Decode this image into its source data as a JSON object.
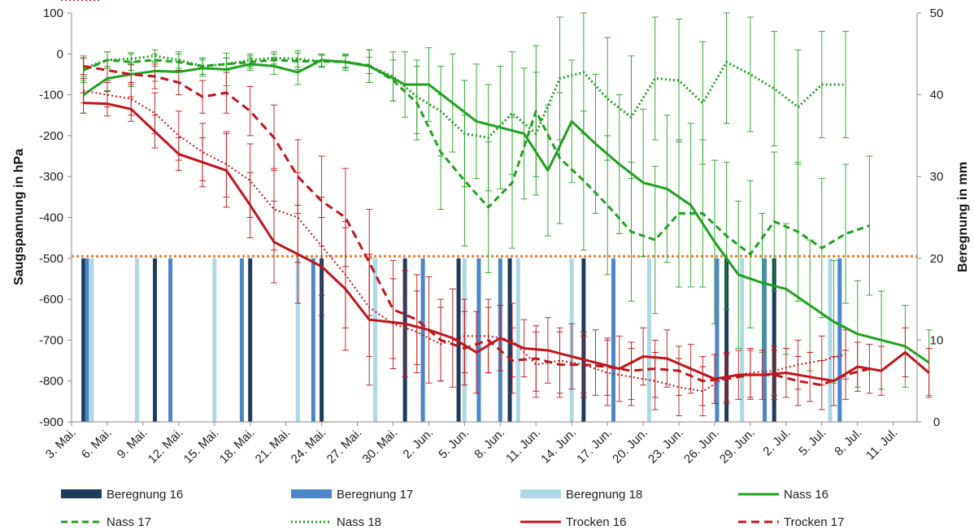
{
  "chart_data": {
    "type": "line",
    "x_tick_labels": [
      "3. Mai.",
      "6. Mai.",
      "9. Mai.",
      "12. Mai.",
      "15. Mai.",
      "18. Mai.",
      "21. Mai.",
      "24. Mai.",
      "27. Mai.",
      "30. Mai.",
      "2. Jun.",
      "5. Jun.",
      "8. Jun.",
      "11. Jun.",
      "14. Jun.",
      "17. Jun.",
      "20. Jun.",
      "23. Jun.",
      "26. Jun.",
      "29. Jun.",
      "2. Jul.",
      "5. Jul.",
      "8. Jul.",
      "11. Jul."
    ],
    "x_unit": "day of year 2016-2018 (0 = 3. Mai.)",
    "xlim": [
      0,
      71
    ],
    "y_left": {
      "label": "Saugspannung in hPa",
      "lim": [
        -900,
        100
      ],
      "ticks": [
        100,
        0,
        -100,
        -200,
        -300,
        -400,
        -500,
        -600,
        -700,
        -800,
        -900
      ]
    },
    "y_right": {
      "label": "Beregnung in mm",
      "lim": [
        0,
        50
      ],
      "ticks": [
        50,
        40,
        30,
        20,
        10,
        0
      ]
    },
    "reference_line": {
      "axis": "left",
      "value": -495,
      "color": "#ed7d31"
    },
    "bars": [
      {
        "name": "Beregnung 16",
        "color": "#1f3b5c",
        "axis": "right",
        "points": [
          [
            1,
            20
          ],
          [
            7,
            20
          ],
          [
            15,
            20
          ],
          [
            21,
            20
          ],
          [
            28,
            20
          ],
          [
            32.5,
            20
          ],
          [
            36.8,
            20
          ],
          [
            43,
            20
          ],
          [
            55,
            20
          ],
          [
            59,
            20
          ]
        ]
      },
      {
        "name": "Beregnung 17",
        "color": "#4a86c8",
        "axis": "right",
        "points": [
          [
            1.3,
            20
          ],
          [
            8.3,
            20
          ],
          [
            14.3,
            20
          ],
          [
            20.3,
            20
          ],
          [
            29.5,
            20
          ],
          [
            34.2,
            20
          ],
          [
            36,
            20
          ],
          [
            45.5,
            20
          ],
          [
            54.2,
            20
          ],
          [
            58.2,
            20
          ],
          [
            64.5,
            20
          ]
        ]
      },
      {
        "name": "Beregnung 18",
        "color": "#add8e6",
        "axis": "right",
        "points": [
          [
            1.7,
            20
          ],
          [
            5.5,
            20
          ],
          [
            12,
            20
          ],
          [
            19,
            20
          ],
          [
            25.5,
            20
          ],
          [
            33,
            20
          ],
          [
            37.5,
            20
          ],
          [
            42,
            20
          ],
          [
            48.5,
            20
          ],
          [
            56.3,
            20
          ],
          [
            63.7,
            20
          ]
        ]
      }
    ],
    "series": [
      {
        "name": "Nass 16",
        "color": "#21a121",
        "dash": "solid",
        "width": 3,
        "x": [
          1,
          3,
          5,
          7,
          9,
          11,
          13,
          15,
          17,
          19,
          21,
          23,
          25,
          28,
          30,
          32,
          34,
          36,
          38,
          40,
          42,
          44,
          46,
          48,
          50,
          52,
          54,
          56,
          58,
          60,
          62,
          64,
          66,
          68,
          70,
          72
        ],
        "y": [
          -100,
          -60,
          -50,
          -42,
          -44,
          -35,
          -38,
          -25,
          -30,
          -45,
          -15,
          -20,
          -30,
          -75,
          -75,
          -120,
          -165,
          -180,
          -195,
          -285,
          -165,
          -220,
          -270,
          -315,
          -330,
          -370,
          -460,
          -540,
          -560,
          -575,
          -615,
          -655,
          -685,
          -700,
          -715,
          -755
        ],
        "err": [
          45,
          30,
          30,
          25,
          25,
          20,
          40,
          15,
          20,
          30,
          15,
          20,
          40,
          80,
          90,
          120,
          140,
          150,
          160,
          160,
          150,
          170,
          170,
          180,
          180,
          200,
          200,
          180,
          170,
          160,
          160,
          150,
          130,
          120,
          100,
          80
        ]
      },
      {
        "name": "Nass 17",
        "color": "#21a121",
        "dash": "8,5",
        "width": 3,
        "x": [
          1,
          3,
          5,
          7,
          9,
          11,
          13,
          15,
          17,
          19,
          21,
          23,
          25,
          27,
          29,
          31,
          33,
          35,
          37,
          39,
          41,
          43,
          45,
          47,
          49,
          51,
          53,
          55,
          57,
          59,
          61,
          63,
          65,
          67
        ],
        "y": [
          -40,
          -15,
          -20,
          -15,
          -20,
          -30,
          -25,
          -20,
          -15,
          -18,
          -18,
          -20,
          -28,
          -65,
          -120,
          -240,
          -310,
          -375,
          -315,
          -140,
          -255,
          -310,
          -370,
          -435,
          -455,
          -390,
          -390,
          -445,
          -490,
          -410,
          -435,
          -475,
          -440,
          -420
        ],
        "err": [
          30,
          20,
          20,
          15,
          20,
          20,
          15,
          15,
          15,
          20,
          15,
          15,
          20,
          50,
          90,
          140,
          160,
          160,
          160,
          160,
          160,
          170,
          170,
          170,
          180,
          180,
          180,
          180,
          180,
          170,
          170,
          170,
          170,
          170
        ]
      },
      {
        "name": "Nass 18",
        "color": "#21a121",
        "dash": "2,3",
        "width": 3,
        "x": [
          1,
          3,
          5,
          7,
          9,
          11,
          13,
          15,
          17,
          19,
          21,
          23,
          25,
          27,
          29,
          31,
          33,
          35,
          37,
          39,
          41,
          43,
          45,
          47,
          49,
          51,
          53,
          55,
          57,
          59,
          61,
          63,
          65
        ],
        "y": [
          -35,
          -15,
          -12,
          -5,
          -15,
          -30,
          -25,
          -15,
          -10,
          -12,
          -18,
          -18,
          -30,
          -55,
          -105,
          -140,
          -195,
          -205,
          -145,
          -195,
          -60,
          -45,
          -110,
          -155,
          -60,
          -65,
          -120,
          -20,
          -50,
          -85,
          -130,
          -75,
          -75
        ],
        "err": [
          30,
          20,
          15,
          15,
          20,
          20,
          15,
          15,
          15,
          20,
          15,
          15,
          40,
          60,
          90,
          110,
          130,
          130,
          150,
          150,
          150,
          150,
          150,
          150,
          150,
          150,
          150,
          150,
          140,
          140,
          140,
          130,
          130
        ]
      },
      {
        "name": "Trocken 16",
        "color": "#c0161c",
        "dash": "solid",
        "width": 3,
        "x": [
          1,
          3,
          5,
          7,
          9,
          11,
          13,
          15,
          17,
          19,
          21,
          23,
          25,
          28,
          30,
          32,
          34,
          36,
          38,
          40,
          42,
          44,
          46,
          48,
          50,
          52,
          54,
          56,
          58,
          60,
          62,
          64,
          66,
          68,
          70,
          72
        ],
        "y": [
          -120,
          -122,
          -135,
          -190,
          -245,
          -265,
          -285,
          -370,
          -460,
          -490,
          -520,
          -575,
          -650,
          -660,
          -675,
          -695,
          -730,
          -695,
          -720,
          -725,
          -740,
          -755,
          -770,
          -740,
          -745,
          -770,
          -795,
          -785,
          -785,
          -780,
          -790,
          -800,
          -765,
          -775,
          -730,
          -780
        ],
        "err": [
          25,
          30,
          30,
          40,
          40,
          60,
          90,
          80,
          100,
          120,
          120,
          150,
          160,
          130,
          130,
          120,
          100,
          80,
          70,
          80,
          80,
          80,
          80,
          70,
          70,
          60,
          60,
          60,
          60,
          60,
          60,
          60,
          60,
          60,
          60,
          60
        ]
      },
      {
        "name": "Trocken 17",
        "color": "#c0161c",
        "dash": "10,6",
        "width": 3,
        "x": [
          1,
          3,
          5,
          7,
          9,
          11,
          13,
          15,
          17,
          19,
          21,
          23,
          25,
          27,
          29,
          31,
          33,
          35,
          37,
          39,
          41,
          43,
          45,
          47,
          49,
          51,
          53,
          55,
          57,
          59,
          61,
          63,
          65,
          67
        ],
        "y": [
          -30,
          -40,
          -50,
          -55,
          -70,
          -105,
          -95,
          -140,
          -205,
          -300,
          -360,
          -400,
          -510,
          -625,
          -650,
          -700,
          -720,
          -700,
          -750,
          -745,
          -760,
          -760,
          -765,
          -775,
          -770,
          -775,
          -800,
          -795,
          -785,
          -785,
          -800,
          -810,
          -785,
          -770
        ],
        "err": [
          20,
          25,
          25,
          30,
          30,
          40,
          50,
          60,
          80,
          90,
          110,
          120,
          130,
          120,
          110,
          100,
          90,
          80,
          80,
          80,
          80,
          70,
          70,
          70,
          70,
          60,
          60,
          60,
          60,
          60,
          60,
          60,
          60,
          60
        ]
      },
      {
        "name": "Trocken 18",
        "color": "#c0161c",
        "dash": "2,3",
        "width": 2,
        "x": [
          1,
          3,
          5,
          7,
          9,
          11,
          13,
          15,
          17,
          19,
          21,
          23,
          25,
          27,
          29,
          31,
          33,
          35,
          37,
          39,
          41,
          43,
          45,
          47,
          49,
          51,
          53,
          55,
          57,
          59,
          61,
          63,
          65
        ],
        "y": [
          -90,
          -100,
          -110,
          -145,
          -200,
          -240,
          -270,
          -310,
          -380,
          -400,
          -470,
          -540,
          -620,
          -660,
          -680,
          -710,
          -690,
          -690,
          -700,
          -760,
          -750,
          -760,
          -780,
          -790,
          -800,
          -815,
          -825,
          -790,
          -780,
          -775,
          -760,
          -750,
          -735
        ],
        "err": [
          30,
          30,
          40,
          50,
          60,
          70,
          80,
          90,
          100,
          110,
          120,
          130,
          120,
          110,
          100,
          90,
          90,
          90,
          90,
          80,
          80,
          80,
          80,
          70,
          70,
          70,
          60,
          60,
          60,
          60,
          60,
          60,
          60
        ]
      }
    ],
    "legend": {
      "placement": "bottom",
      "entries": [
        "Beregnung 16",
        "Beregnung 17",
        "Beregnung 18",
        "Nass 16",
        "Nass 17",
        "Nass 18",
        "Trocken 16",
        "Trocken 17",
        "Trocken 18"
      ]
    },
    "grid": false
  }
}
